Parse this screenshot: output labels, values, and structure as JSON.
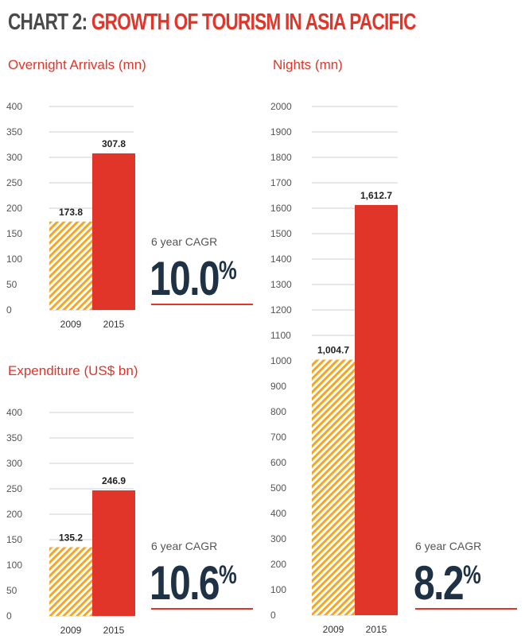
{
  "title": {
    "prefix": "CHART 2: ",
    "main": "GROWTH OF TOURISM IN ASIA PACIFIC"
  },
  "colors": {
    "red": "#e2352a",
    "hatch": "#f5a623",
    "navy": "#1f3245",
    "grid": "#cfcfcf"
  },
  "cagr_label": "6 year CAGR",
  "chart_data": [
    {
      "id": "arrivals",
      "type": "bar",
      "title": "Overnight Arrivals (mn)",
      "categories": [
        "2009",
        "2015"
      ],
      "values": [
        173.8,
        307.8
      ],
      "value_labels": [
        "173.8",
        "307.8"
      ],
      "ylim": [
        0,
        400
      ],
      "yticks": [
        0,
        50,
        100,
        150,
        200,
        250,
        300,
        350,
        400
      ],
      "ytick_labels": [
        "0",
        "50",
        "100",
        "150",
        "200",
        "250",
        "300",
        "350",
        "400"
      ],
      "bar_styles": [
        "hatched-orange",
        "solid-red"
      ],
      "grid": true,
      "cagr_value": "10.0",
      "cagr_unit": "%"
    },
    {
      "id": "expenditure",
      "type": "bar",
      "title": "Expenditure (US$ bn)",
      "categories": [
        "2009",
        "2015"
      ],
      "values": [
        135.2,
        246.9
      ],
      "value_labels": [
        "135.2",
        "246.9"
      ],
      "ylim": [
        0,
        400
      ],
      "yticks": [
        0,
        50,
        100,
        150,
        200,
        250,
        300,
        350,
        400
      ],
      "ytick_labels": [
        "0",
        "50",
        "100",
        "150",
        "200",
        "250",
        "300",
        "350",
        "400"
      ],
      "bar_styles": [
        "hatched-orange",
        "solid-red"
      ],
      "grid": true,
      "cagr_value": "10.6",
      "cagr_unit": "%"
    },
    {
      "id": "nights",
      "type": "bar",
      "title": "Nights (mn)",
      "categories": [
        "2009",
        "2015"
      ],
      "values": [
        1004.7,
        1612.7
      ],
      "value_labels": [
        "1,004.7",
        "1,612.7"
      ],
      "ylim": [
        0,
        2000
      ],
      "yticks": [
        0,
        100,
        200,
        300,
        400,
        500,
        600,
        700,
        800,
        900,
        1000,
        1100,
        1200,
        1300,
        1400,
        1500,
        1600,
        1700,
        1800,
        1900,
        2000
      ],
      "ytick_labels": [
        "0",
        "100",
        "200",
        "300",
        "400",
        "500",
        "600",
        "700",
        "800",
        "900",
        "1000",
        "1100",
        "1200",
        "1300",
        "1400",
        "1500",
        "1600",
        "1700",
        "1800",
        "1900",
        "2000"
      ],
      "bar_styles": [
        "hatched-orange",
        "solid-red"
      ],
      "grid": true,
      "cagr_value": "8.2",
      "cagr_unit": "%"
    }
  ]
}
